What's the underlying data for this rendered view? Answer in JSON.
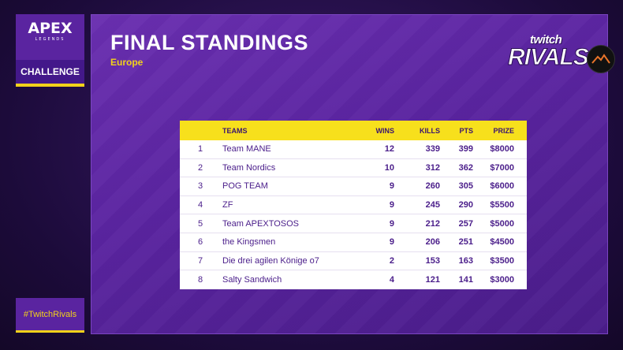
{
  "brand": {
    "game_logo": "APEX",
    "game_logo_sub": "LEGENDS",
    "event_label": "CHALLENGE",
    "hashtag": "#TwitchRivals",
    "twitch_word": "twitch",
    "rivals_word": "RIVALS",
    "accent_color": "#f2d21a",
    "panel_color": "#5a24a0"
  },
  "header": {
    "title": "FINAL STANDINGS",
    "region": "Europe"
  },
  "standings": {
    "columns": {
      "rank": "",
      "team": "TEAMS",
      "wins": "WINS",
      "kills": "KILLS",
      "pts": "PTS",
      "prize": "PRIZE"
    },
    "rows": [
      {
        "rank": "1",
        "team": "Team MANE",
        "wins": "12",
        "kills": "339",
        "pts": "399",
        "prize": "$8000"
      },
      {
        "rank": "2",
        "team": "Team Nordics",
        "wins": "10",
        "kills": "312",
        "pts": "362",
        "prize": "$7000"
      },
      {
        "rank": "3",
        "team": "POG TEAM",
        "wins": "9",
        "kills": "260",
        "pts": "305",
        "prize": "$6000"
      },
      {
        "rank": "4",
        "team": "ZF",
        "wins": "9",
        "kills": "245",
        "pts": "290",
        "prize": "$5500"
      },
      {
        "rank": "5",
        "team": "Team APEXTOSOS",
        "wins": "9",
        "kills": "212",
        "pts": "257",
        "prize": "$5000"
      },
      {
        "rank": "6",
        "team": "the Kingsmen",
        "wins": "9",
        "kills": "206",
        "pts": "251",
        "prize": "$4500"
      },
      {
        "rank": "7",
        "team": "Die drei agilen Könige o7",
        "wins": "2",
        "kills": "153",
        "pts": "163",
        "prize": "$3500"
      },
      {
        "rank": "8",
        "team": "Salty Sandwich",
        "wins": "4",
        "kills": "121",
        "pts": "141",
        "prize": "$3000"
      }
    ]
  },
  "icons": {
    "sponsor": "mountain-logo-icon"
  }
}
